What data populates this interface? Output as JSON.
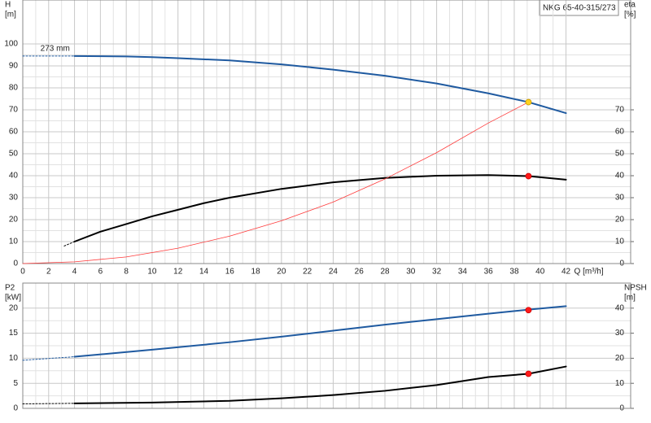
{
  "chart_data": [
    {
      "type": "line",
      "title": "NKG 65-40-315/273",
      "ylabel": [
        "H",
        "[m]"
      ],
      "y2label": [
        "eta",
        "[%]"
      ],
      "xlabel": "Q [m³/h]",
      "xlim": [
        0,
        47
      ],
      "xticks": [
        0,
        2,
        4,
        6,
        8,
        10,
        12,
        14,
        16,
        18,
        20,
        22,
        24,
        26,
        28,
        30,
        32,
        34,
        36,
        38,
        40,
        42
      ],
      "ylim": [
        0,
        120
      ],
      "yticks": [
        0,
        10,
        20,
        30,
        40,
        50,
        60,
        70,
        80,
        90,
        100
      ],
      "y2lim": [
        0,
        120
      ],
      "y2ticks": [
        0,
        10,
        20,
        30,
        40,
        50,
        60,
        70
      ],
      "grid": true,
      "annotations": [
        {
          "text": "273 mm",
          "x": 2.5,
          "y": 94.5
        }
      ],
      "series": [
        {
          "color": "#1f5aa0",
          "axis": "y",
          "dash": true,
          "x": [
            0,
            4
          ],
          "values": [
            94.5,
            94.5
          ]
        },
        {
          "color": "#1f5aa0",
          "axis": "y",
          "x": [
            4,
            8,
            10,
            12,
            16,
            20,
            24,
            28,
            32,
            36,
            39.1,
            42
          ],
          "values": [
            94.5,
            94.3,
            94,
            93.5,
            92.5,
            90.7,
            88.3,
            85.5,
            82,
            77.5,
            73.5,
            68.5
          ]
        },
        {
          "color": "#000000",
          "axis": "y2",
          "dash": true,
          "x": [
            3.2,
            4
          ],
          "values": [
            8,
            10
          ]
        },
        {
          "color": "#000000",
          "axis": "y2",
          "x": [
            4,
            6,
            8,
            10,
            12,
            14,
            16,
            20,
            24,
            28,
            32,
            36,
            39.1,
            42
          ],
          "values": [
            10,
            14.5,
            18,
            21.5,
            24.5,
            27.5,
            30,
            34,
            37,
            39,
            40,
            40.3,
            39.8,
            38.2
          ]
        },
        {
          "color": "#ff3b3b",
          "axis": "y",
          "thin": true,
          "x": [
            0,
            4,
            8,
            12,
            16,
            20,
            24,
            28,
            32,
            36,
            39.1
          ],
          "values": [
            0,
            0.8,
            3,
            7,
            12.5,
            19.5,
            28,
            38.5,
            50.5,
            64,
            73.5
          ]
        },
        {
          "color": "#ffd21f",
          "axis": "y",
          "marker": true,
          "x": [
            39.1
          ],
          "values": [
            73.5
          ]
        },
        {
          "color": "#ff1a1a",
          "axis": "y2",
          "marker": true,
          "x": [
            39.1
          ],
          "values": [
            39.8
          ]
        }
      ]
    },
    {
      "type": "line",
      "ylabel": [
        "P2",
        "[kW]"
      ],
      "y2label": [
        "NPSH",
        "[m]"
      ],
      "xlim": [
        0,
        47
      ],
      "xticks": [
        0,
        2,
        4,
        6,
        8,
        10,
        12,
        14,
        16,
        18,
        20,
        22,
        24,
        26,
        28,
        30,
        32,
        34,
        36,
        38,
        40,
        42
      ],
      "ylim": [
        0,
        25
      ],
      "yticks": [
        0,
        5,
        10,
        15,
        20
      ],
      "y2lim": [
        0,
        50
      ],
      "y2ticks": [
        0,
        10,
        20,
        30,
        40
      ],
      "grid": true,
      "series": [
        {
          "color": "#1f5aa0",
          "axis": "y",
          "dash": true,
          "x": [
            0,
            4
          ],
          "values": [
            9.6,
            10.3
          ]
        },
        {
          "color": "#1f5aa0",
          "axis": "y",
          "x": [
            4,
            10,
            16,
            20,
            24,
            28,
            32,
            36,
            39.1,
            42
          ],
          "values": [
            10.3,
            11.7,
            13.2,
            14.3,
            15.5,
            16.7,
            17.8,
            18.9,
            19.7,
            20.4
          ]
        },
        {
          "color": "#000000",
          "axis": "y2",
          "dash": true,
          "x": [
            0,
            4
          ],
          "values": [
            1.8,
            2
          ]
        },
        {
          "color": "#000000",
          "axis": "y2",
          "x": [
            4,
            10,
            16,
            20,
            24,
            28,
            32,
            36,
            39.1,
            42
          ],
          "values": [
            2,
            2.3,
            3,
            4,
            5.3,
            7,
            9.3,
            12.5,
            13.8,
            16.7
          ]
        },
        {
          "color": "#ff1a1a",
          "axis": "y",
          "marker": true,
          "x": [
            39.1
          ],
          "values": [
            19.6
          ]
        },
        {
          "color": "#ff1a1a",
          "axis": "y2",
          "marker": true,
          "x": [
            39.1
          ],
          "values": [
            13.8
          ]
        }
      ]
    }
  ]
}
